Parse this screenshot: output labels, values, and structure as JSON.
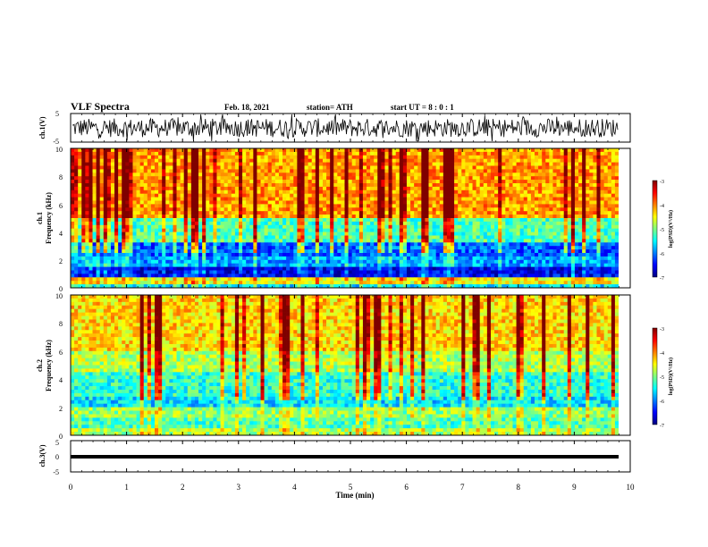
{
  "header": {
    "title": "VLF Spectra",
    "date": "Feb. 18, 2021",
    "station": "station= ATH",
    "start": "start  UT =   8 : 0  : 1"
  },
  "colors": {
    "jet": [
      "#00007f",
      "#0000ff",
      "#007fff",
      "#00ffff",
      "#7fff7f",
      "#ffff00",
      "#ff7f00",
      "#ff0000",
      "#7f0000"
    ]
  },
  "chart_data": [
    {
      "id": "ch1-waveform",
      "type": "line",
      "ylabel": "ch.1(V)",
      "ylim": [
        -5,
        5
      ],
      "yticks": [
        "5",
        "-5"
      ],
      "xlim": [
        0,
        10
      ]
    },
    {
      "id": "ch1-spectrogram",
      "type": "heatmap",
      "ylabel_line1": "ch.1",
      "ylabel_line2": "Frequency  (kHz)",
      "ylim": [
        0,
        10
      ],
      "yticks": [
        "0",
        "2",
        "4",
        "6",
        "8",
        "10"
      ],
      "xlim": [
        0,
        10
      ],
      "colorbar": {
        "range": [
          -7,
          -3
        ],
        "ticks": [
          "-3",
          "-4",
          "-5",
          "-6",
          "-7"
        ],
        "label": "log(PSD)(V²/Hz)"
      }
    },
    {
      "id": "ch2-spectrogram",
      "type": "heatmap",
      "ylabel_line1": "ch.2",
      "ylabel_line2": "Frequency  (kHz)",
      "ylim": [
        0,
        10
      ],
      "yticks": [
        "0",
        "2",
        "4",
        "6",
        "8",
        "10"
      ],
      "xlim": [
        0,
        10
      ],
      "colorbar": {
        "range": [
          -7,
          -3
        ],
        "ticks": [
          "-3",
          "-4",
          "-5",
          "-6",
          "-7"
        ],
        "label": "log(PSD)(V²/Hz)"
      }
    },
    {
      "id": "ch3-waveform",
      "type": "line",
      "ylabel": "ch.3(V)",
      "ylim": [
        -5,
        5
      ],
      "yticks": [
        "5",
        "0",
        "-5"
      ],
      "xlim": [
        0,
        10
      ]
    }
  ],
  "xaxis": {
    "label": "Time  (min)",
    "ticks": [
      "0",
      "1",
      "2",
      "3",
      "4",
      "5",
      "6",
      "7",
      "8",
      "9",
      "10"
    ]
  }
}
